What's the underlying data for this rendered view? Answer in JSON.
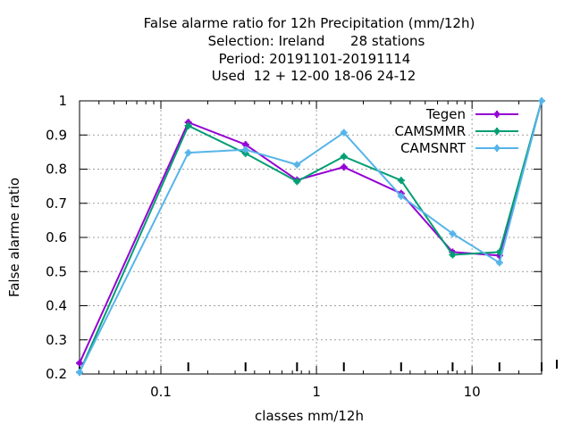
{
  "chart_data": {
    "type": "line",
    "title_lines": [
      "False alarme ratio  for 12h Precipitation (mm/12h)",
      "Selection: Ireland      28 stations",
      "Period: 20191101-20191114",
      "Used  12 + 12-00 18-06 24-12"
    ],
    "xlabel": "classes mm/12h",
    "ylabel": "False alarme ratio",
    "xscale": "log",
    "xlim": [
      0.03,
      28
    ],
    "ylim": [
      0.2,
      1.0
    ],
    "xticks": [
      {
        "value": 0.1,
        "label": "0.1"
      },
      {
        "value": 1,
        "label": "1"
      },
      {
        "value": 10,
        "label": "10"
      }
    ],
    "yticks": [
      {
        "value": 0.2,
        "label": "0.2"
      },
      {
        "value": 0.3,
        "label": "0.3"
      },
      {
        "value": 0.4,
        "label": "0.4"
      },
      {
        "value": 0.5,
        "label": "0.5"
      },
      {
        "value": 0.6,
        "label": "0.6"
      },
      {
        "value": 0.7,
        "label": "0.7"
      },
      {
        "value": 0.8,
        "label": "0.8"
      },
      {
        "value": 0.9,
        "label": "0.9"
      },
      {
        "value": 1.0,
        "label": "1"
      }
    ],
    "grid": true,
    "legend_position": "top-right",
    "series": [
      {
        "name": "Tegen",
        "color": "#9400d3",
        "marker": "plus",
        "x": [
          0.03,
          0.15,
          0.35,
          0.75,
          1.5,
          3.5,
          7.5,
          15,
          28
        ],
        "y": [
          0.232,
          0.937,
          0.872,
          0.768,
          0.806,
          0.729,
          0.557,
          0.547,
          1.0
        ]
      },
      {
        "name": "CAMSMMR",
        "color": "#009e73",
        "marker": "plus",
        "x": [
          0.03,
          0.15,
          0.35,
          0.75,
          1.5,
          3.5,
          7.5,
          15,
          28
        ],
        "y": [
          0.205,
          0.927,
          0.846,
          0.764,
          0.837,
          0.767,
          0.549,
          0.557,
          1.0
        ]
      },
      {
        "name": "CAMSNRT",
        "color": "#56b4e9",
        "marker": "plus",
        "x": [
          0.03,
          0.15,
          0.35,
          0.75,
          1.5,
          3.5,
          7.5,
          15,
          28
        ],
        "y": [
          0.205,
          0.848,
          0.857,
          0.813,
          0.907,
          0.721,
          0.611,
          0.526,
          1.0
        ]
      }
    ]
  }
}
